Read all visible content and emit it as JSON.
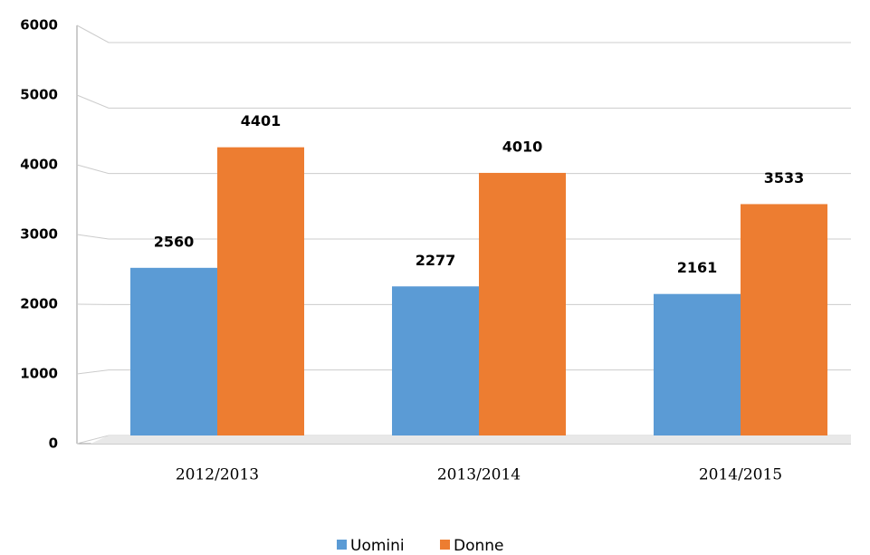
{
  "chart_data": {
    "type": "bar",
    "categories": [
      "2012/2013",
      "2013/2014",
      "2014/2015"
    ],
    "series": [
      {
        "name": "Uomini",
        "color": "#5b9bd5",
        "values": [
          2560,
          2277,
          2161
        ]
      },
      {
        "name": "Donne",
        "color": "#ed7d31",
        "values": [
          4401,
          4010,
          3533
        ]
      }
    ],
    "ylim": [
      0,
      6000
    ],
    "yticks": [
      0,
      1000,
      2000,
      3000,
      4000,
      5000,
      6000
    ],
    "grid": true,
    "legend": "bottom"
  }
}
